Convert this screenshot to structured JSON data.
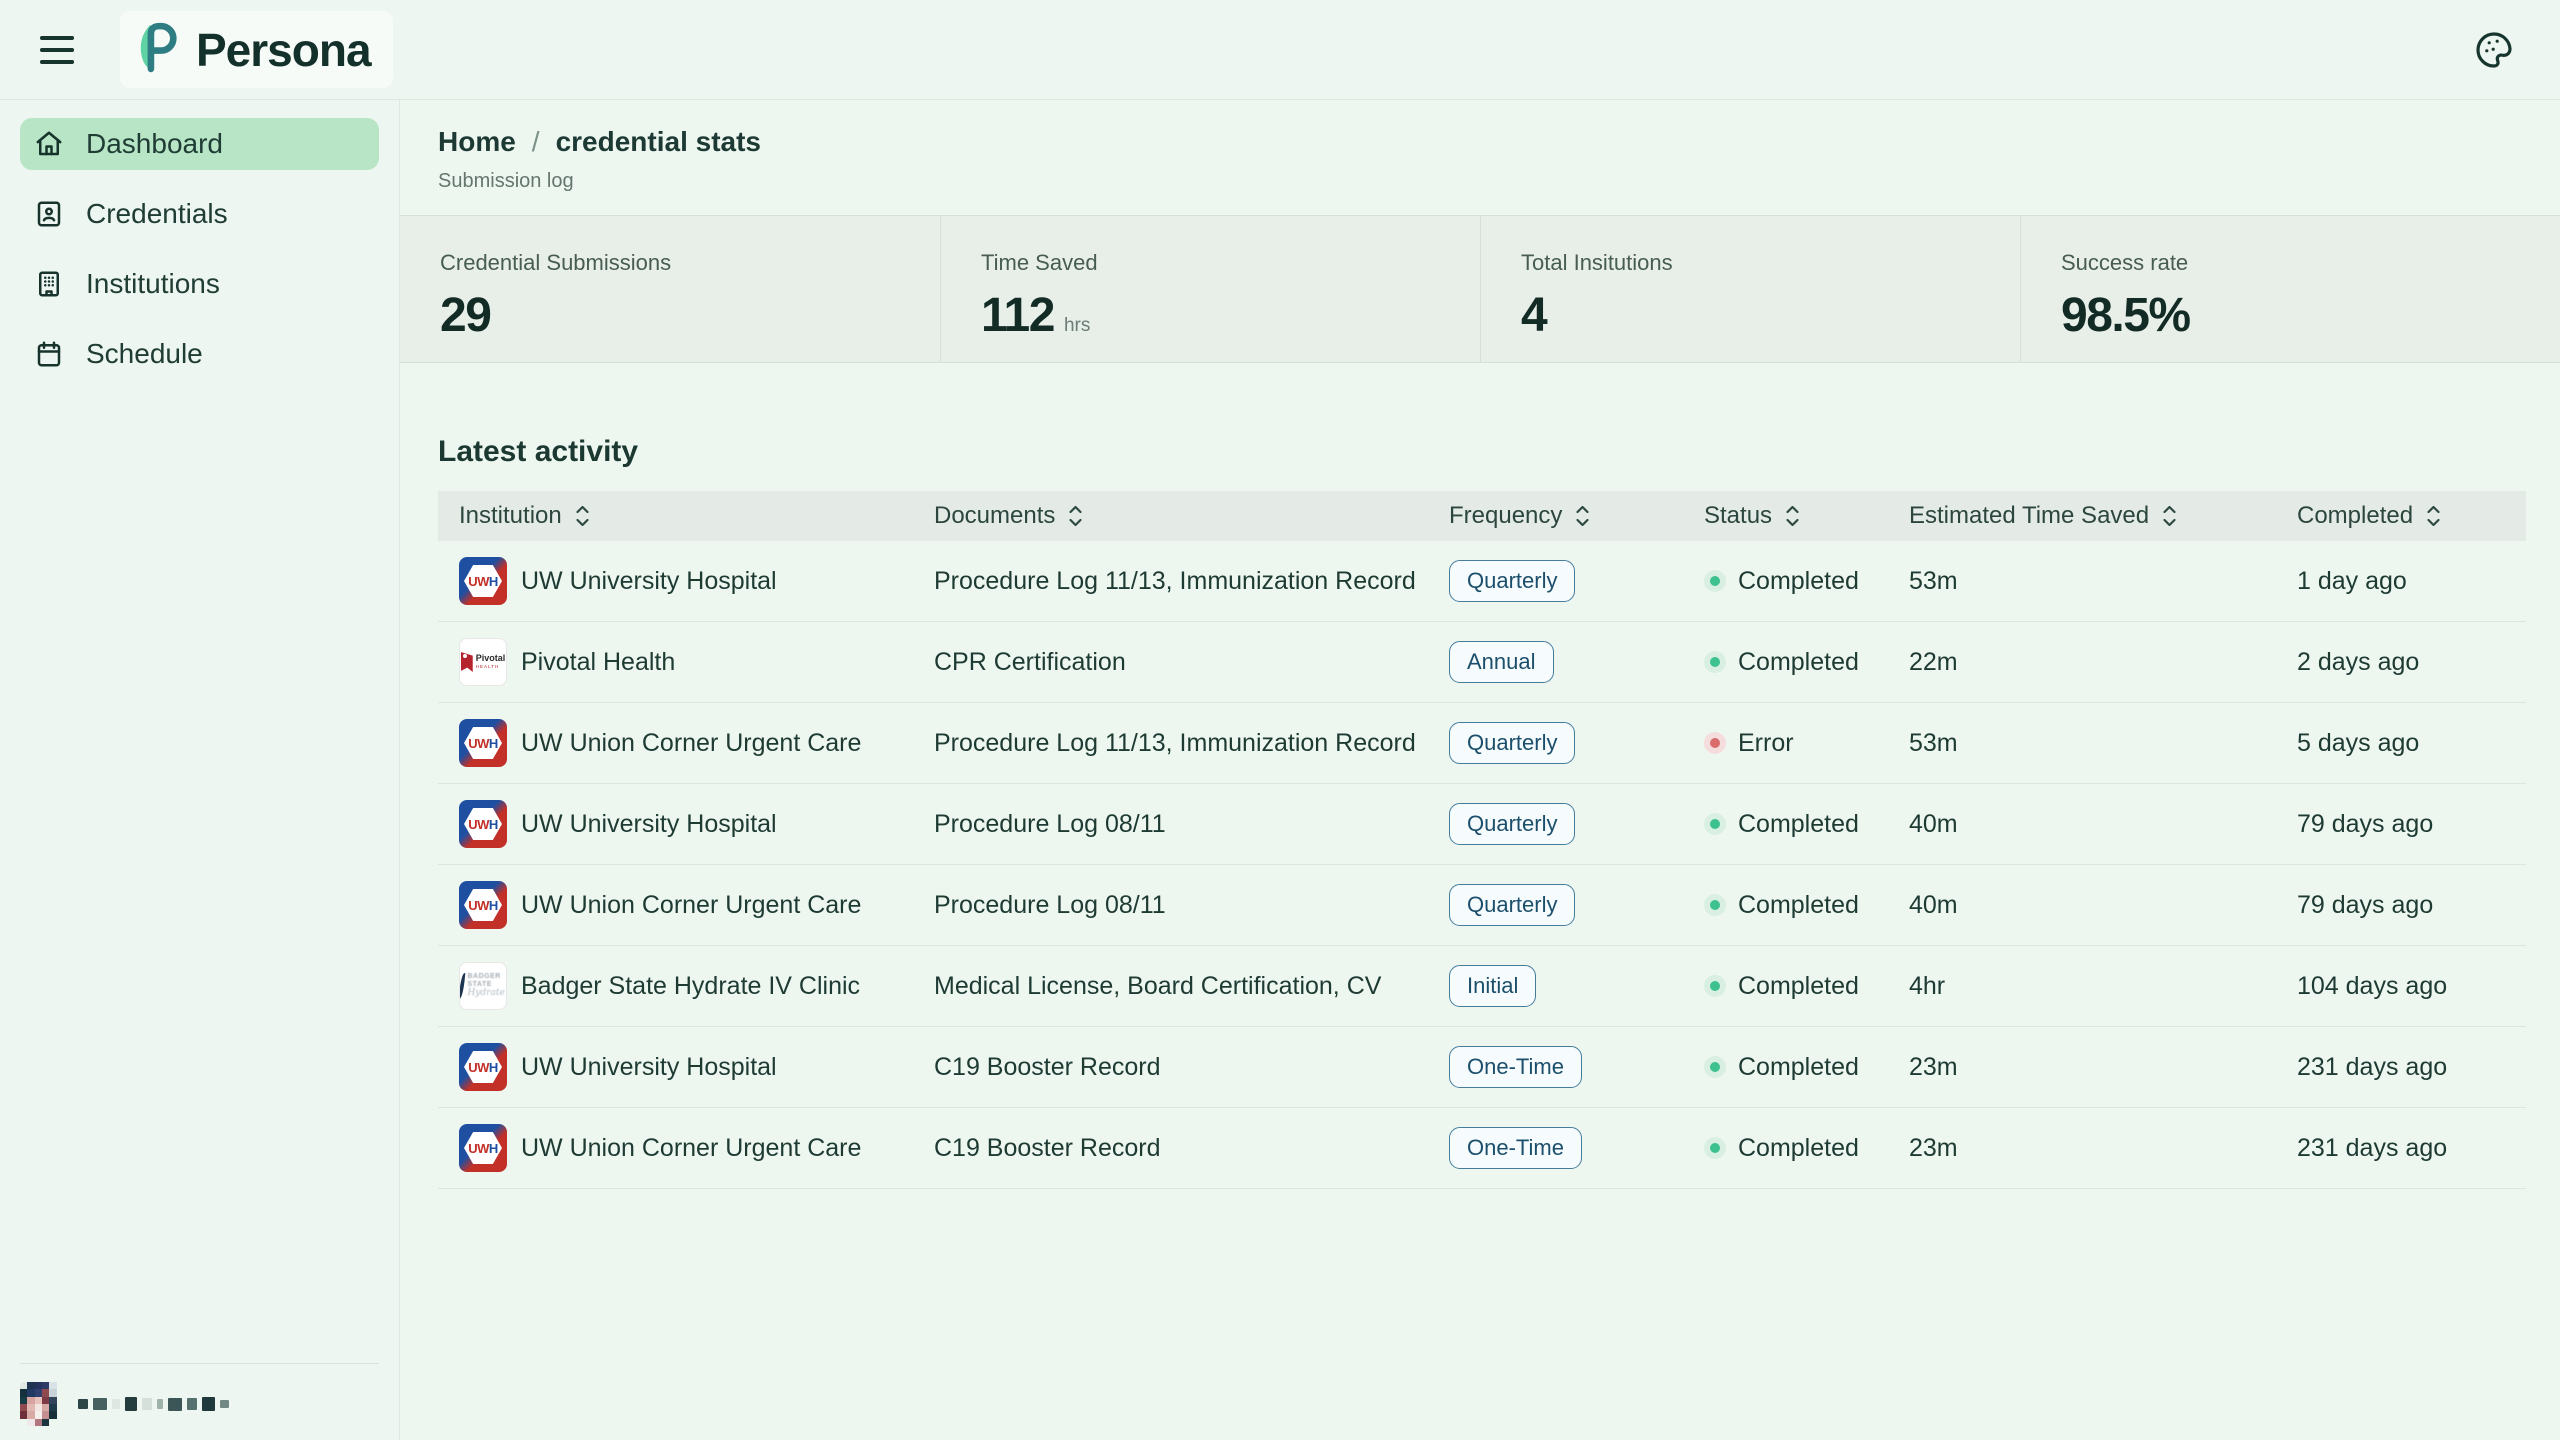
{
  "header": {
    "brand": "Persona",
    "menu_icon": "hamburger",
    "theme_icon": "palette"
  },
  "sidebar": {
    "items": [
      {
        "label": "Dashboard",
        "icon": "home",
        "active": true
      },
      {
        "label": "Credentials",
        "icon": "id-badge",
        "active": false
      },
      {
        "label": "Institutions",
        "icon": "building",
        "active": false
      },
      {
        "label": "Schedule",
        "icon": "calendar",
        "active": false
      }
    ],
    "user": {
      "avatar": "pixelated-photo",
      "name": "redacted-pixelated",
      "avatar_pixels": [
        "#dfe9e4",
        "#1d3550",
        "#24345c",
        "#2c3a66",
        "#d9e2e6",
        "#eef6f0",
        "#14303c",
        "#223a63",
        "#31406e",
        "#8f4a50",
        "#c9d3d8",
        "#eef6f0",
        "#173b43",
        "#d9a3a0",
        "#e8c2bc",
        "#7c3a44",
        "#31455a",
        "#eef6f0",
        "#8f4a50",
        "#e3b7b2",
        "#f2e6e2",
        "#d8aaa5",
        "#1f3a4a",
        "#eef6f0",
        "#6e2f3a",
        "#d8aaa5",
        "#f5efec",
        "#c58f92",
        "#16303a",
        "#eef6f0",
        "#eef6f0",
        "#efe9ea",
        "#b2777e",
        "#1c3340",
        "#eef6f0",
        "#eef6f0"
      ],
      "name_blocks": [
        {
          "w": 10,
          "h": 10,
          "c": "#2c4648"
        },
        {
          "w": 14,
          "h": 12,
          "c": "#46605f"
        },
        {
          "w": 8,
          "h": 10,
          "c": "#dfe7e3"
        },
        {
          "w": 12,
          "h": 14,
          "c": "#243e40"
        },
        {
          "w": 10,
          "h": 12,
          "c": "#d6e0db"
        },
        {
          "w": 6,
          "h": 10,
          "c": "#9fb3ac"
        },
        {
          "w": 14,
          "h": 13,
          "c": "#3c5658"
        },
        {
          "w": 10,
          "h": 12,
          "c": "#56706d"
        },
        {
          "w": 13,
          "h": 14,
          "c": "#1f393c"
        },
        {
          "w": 9,
          "h": 8,
          "c": "#728884"
        }
      ]
    }
  },
  "breadcrumb": {
    "home": "Home",
    "separator": "/",
    "current": "credential stats",
    "subtitle": "Submission log"
  },
  "stats": [
    {
      "label": "Credential Submissions",
      "value": "29",
      "suffix": ""
    },
    {
      "label": "Time Saved",
      "value": "112",
      "suffix": "hrs"
    },
    {
      "label": "Total Insitutions",
      "value": "4",
      "suffix": ""
    },
    {
      "label": "Success rate",
      "value": "98.5%",
      "suffix": ""
    }
  ],
  "activity": {
    "title": "Latest activity",
    "columns": [
      "Institution",
      "Documents",
      "Frequency",
      "Status",
      "Estimated Time Saved",
      "Completed"
    ],
    "rows": [
      {
        "institution": "UW University Hospital",
        "logo": "uwh",
        "documents": "Procedure Log 11/13, Immunization Record",
        "frequency": "Quarterly",
        "status": "Completed",
        "status_type": "success",
        "time_saved": "53m",
        "completed": "1 day ago"
      },
      {
        "institution": "Pivotal Health",
        "logo": "pivotal",
        "documents": "CPR Certification",
        "frequency": "Annual",
        "status": "Completed",
        "status_type": "success",
        "time_saved": "22m",
        "completed": "2 days ago"
      },
      {
        "institution": "UW Union Corner Urgent Care",
        "logo": "uwh",
        "documents": "Procedure Log 11/13, Immunization Record",
        "frequency": "Quarterly",
        "status": "Error",
        "status_type": "error",
        "time_saved": "53m",
        "completed": "5 days ago"
      },
      {
        "institution": "UW University Hospital",
        "logo": "uwh",
        "documents": "Procedure Log 08/11",
        "frequency": "Quarterly",
        "status": "Completed",
        "status_type": "success",
        "time_saved": "40m",
        "completed": "79 days ago"
      },
      {
        "institution": "UW Union Corner Urgent Care",
        "logo": "uwh",
        "documents": "Procedure Log 08/11",
        "frequency": "Quarterly",
        "status": "Completed",
        "status_type": "success",
        "time_saved": "40m",
        "completed": "79 days ago"
      },
      {
        "institution": "Badger State Hydrate IV Clinic",
        "logo": "badger",
        "documents": "Medical License, Board Certification, CV",
        "frequency": "Initial",
        "status": "Completed",
        "status_type": "success",
        "time_saved": "4hr",
        "completed": "104 days ago"
      },
      {
        "institution": "UW University Hospital",
        "logo": "uwh",
        "documents": "C19 Booster Record",
        "frequency": "One-Time",
        "status": "Completed",
        "status_type": "success",
        "time_saved": "23m",
        "completed": "231 days ago"
      },
      {
        "institution": "UW Union Corner Urgent Care",
        "logo": "uwh",
        "documents": "C19 Booster Record",
        "frequency": "One-Time",
        "status": "Completed",
        "status_type": "success",
        "time_saved": "23m",
        "completed": "231 days ago"
      }
    ]
  },
  "colors": {
    "accent_green": "#b7e5c6",
    "logo_teal": "#2e7d83",
    "logo_mint": "#5fd3a2",
    "status_success": "#3cc18f",
    "status_error": "#d96b6b",
    "badge_border": "#447d9b",
    "badge_text": "#1c4f6b",
    "text_dark": "#17332c",
    "band_bg": "#e8efe9",
    "page_bg": "#eef6f0"
  }
}
